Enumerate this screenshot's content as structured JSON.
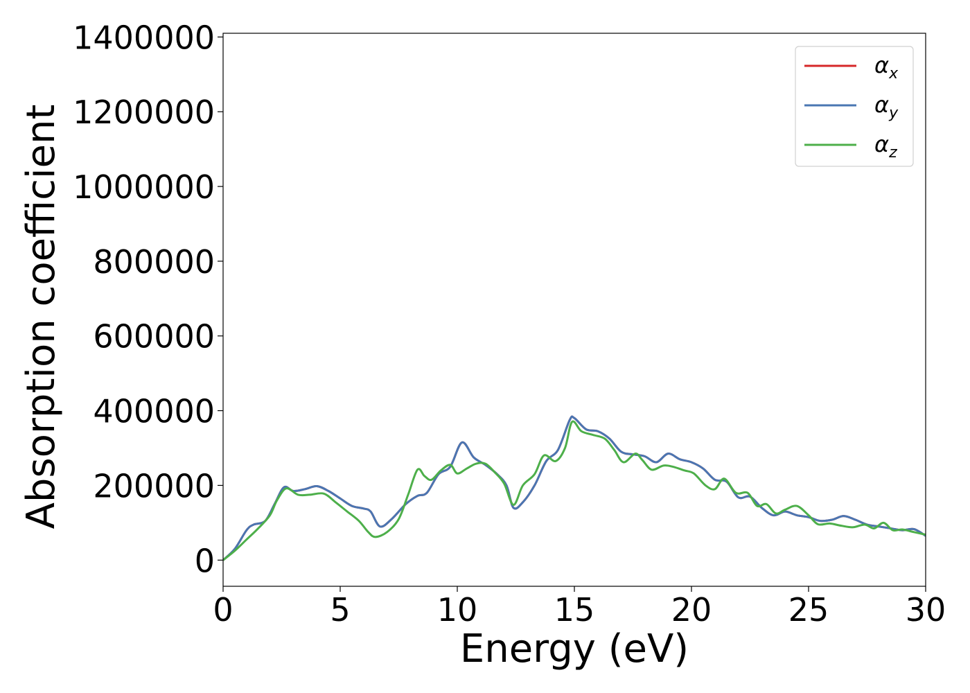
{
  "chart_data": {
    "type": "line",
    "xlabel": "Energy (eV)",
    "ylabel": "Absorption coefficient",
    "xlim": [
      0,
      30
    ],
    "ylim": [
      -70000,
      1410000
    ],
    "xticks": [
      0,
      5,
      10,
      15,
      20,
      25,
      30
    ],
    "yticks": [
      0,
      200000,
      400000,
      600000,
      800000,
      1000000,
      1200000,
      1400000
    ],
    "grid": false,
    "legend_position": "top-right",
    "series": [
      {
        "name": "α",
        "subscript": "x",
        "color": "#d62728",
        "x": [
          0,
          0.5,
          1.0,
          1.3,
          1.8,
          2.2,
          2.6,
          3.0,
          3.5,
          4.0,
          4.5,
          5.0,
          5.5,
          6.0,
          6.3,
          6.7,
          7.2,
          7.8,
          8.3,
          8.7,
          9.2,
          9.7,
          10.2,
          10.7,
          11.2,
          11.7,
          12.1,
          12.4,
          12.8,
          13.3,
          13.8,
          14.3,
          14.8,
          15.0,
          15.5,
          16.0,
          16.5,
          17.0,
          17.5,
          18.0,
          18.5,
          19.0,
          19.5,
          20.0,
          20.5,
          21.0,
          21.5,
          22.0,
          22.5,
          23.0,
          23.5,
          24.0,
          24.5,
          25.0,
          25.5,
          26.0,
          26.5,
          27.0,
          27.5,
          28.0,
          28.5,
          29.0,
          29.5,
          30.0
        ],
        "y": [
          0,
          30000,
          80000,
          95000,
          105000,
          150000,
          195000,
          185000,
          190000,
          198000,
          185000,
          165000,
          145000,
          138000,
          130000,
          90000,
          110000,
          150000,
          172000,
          180000,
          230000,
          250000,
          315000,
          275000,
          255000,
          230000,
          200000,
          140000,
          155000,
          200000,
          265000,
          295000,
          375000,
          380000,
          350000,
          345000,
          325000,
          290000,
          283000,
          278000,
          262000,
          285000,
          270000,
          262000,
          245000,
          215000,
          210000,
          168000,
          170000,
          140000,
          120000,
          130000,
          120000,
          115000,
          105000,
          108000,
          118000,
          108000,
          95000,
          90000,
          85000,
          80000,
          83000,
          65000
        ]
      },
      {
        "name": "α",
        "subscript": "y",
        "color": "#4a76b2",
        "x": [
          0,
          0.5,
          1.0,
          1.3,
          1.8,
          2.2,
          2.6,
          3.0,
          3.5,
          4.0,
          4.5,
          5.0,
          5.5,
          6.0,
          6.3,
          6.7,
          7.2,
          7.8,
          8.3,
          8.7,
          9.2,
          9.7,
          10.2,
          10.7,
          11.2,
          11.7,
          12.1,
          12.4,
          12.8,
          13.3,
          13.8,
          14.3,
          14.8,
          15.0,
          15.5,
          16.0,
          16.5,
          17.0,
          17.5,
          18.0,
          18.5,
          19.0,
          19.5,
          20.0,
          20.5,
          21.0,
          21.5,
          22.0,
          22.5,
          23.0,
          23.5,
          24.0,
          24.5,
          25.0,
          25.5,
          26.0,
          26.5,
          27.0,
          27.5,
          28.0,
          28.5,
          29.0,
          29.5,
          30.0
        ],
        "y": [
          0,
          30000,
          80000,
          95000,
          105000,
          150000,
          195000,
          185000,
          190000,
          198000,
          185000,
          165000,
          145000,
          138000,
          130000,
          90000,
          110000,
          150000,
          172000,
          180000,
          230000,
          250000,
          315000,
          275000,
          255000,
          230000,
          200000,
          140000,
          155000,
          200000,
          265000,
          295000,
          375000,
          380000,
          350000,
          345000,
          325000,
          290000,
          283000,
          278000,
          262000,
          285000,
          270000,
          262000,
          245000,
          215000,
          210000,
          168000,
          170000,
          140000,
          120000,
          130000,
          120000,
          115000,
          105000,
          108000,
          118000,
          108000,
          95000,
          90000,
          85000,
          80000,
          83000,
          65000
        ]
      },
      {
        "name": "α",
        "subscript": "z",
        "color": "#4daf4a",
        "x": [
          0,
          0.5,
          1.0,
          1.5,
          2.0,
          2.3,
          2.7,
          3.2,
          3.7,
          4.3,
          4.8,
          5.3,
          5.8,
          6.2,
          6.5,
          7.0,
          7.5,
          7.9,
          8.3,
          8.6,
          8.9,
          9.3,
          9.7,
          10.0,
          10.4,
          10.8,
          11.2,
          11.6,
          12.0,
          12.4,
          12.8,
          13.3,
          13.7,
          14.2,
          14.6,
          14.9,
          15.3,
          15.8,
          16.3,
          16.7,
          17.1,
          17.6,
          17.9,
          18.3,
          18.8,
          19.2,
          19.7,
          20.1,
          20.6,
          21.0,
          21.4,
          21.9,
          22.4,
          22.8,
          23.2,
          23.6,
          24.0,
          24.5,
          25.0,
          25.4,
          25.9,
          26.4,
          26.9,
          27.4,
          27.8,
          28.2,
          28.6,
          29.0,
          29.5,
          30.0
        ],
        "y": [
          0,
          25000,
          55000,
          85000,
          120000,
          160000,
          192000,
          175000,
          175000,
          178000,
          155000,
          130000,
          105000,
          75000,
          62000,
          75000,
          110000,
          175000,
          242000,
          225000,
          215000,
          240000,
          255000,
          232000,
          245000,
          258000,
          258000,
          235000,
          205000,
          148000,
          200000,
          230000,
          280000,
          265000,
          300000,
          370000,
          345000,
          335000,
          325000,
          295000,
          262000,
          285000,
          268000,
          242000,
          253000,
          250000,
          240000,
          232000,
          200000,
          190000,
          218000,
          180000,
          180000,
          145000,
          150000,
          125000,
          135000,
          145000,
          120000,
          96000,
          98000,
          92000,
          88000,
          95000,
          85000,
          100000,
          80000,
          82000,
          75000,
          68000
        ]
      }
    ]
  }
}
